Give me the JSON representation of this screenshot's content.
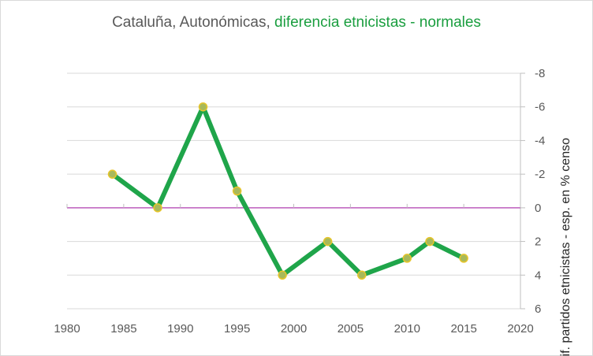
{
  "chart_data": {
    "type": "line",
    "title_main": "Cataluña, Autonómicas, ",
    "title_accent": "diferencia etnicistas - normales",
    "xlabel": "",
    "ylabel": "Dif. partidos etnicistas - esp. en % censo",
    "xlim": [
      1980,
      2020
    ],
    "ylim": [
      6,
      -8
    ],
    "y_reversed": true,
    "x_ticks": [
      1980,
      1985,
      1990,
      1995,
      2000,
      2005,
      2010,
      2015,
      2020
    ],
    "y_ticks": [
      -8,
      -6,
      -4,
      -2,
      0,
      2,
      4,
      6
    ],
    "grid": true,
    "series": [
      {
        "name": "diferencia etnicistas - normales",
        "x": [
          1984,
          1988,
          1992,
          1995,
          1999,
          2003,
          2006,
          2010,
          2012,
          2015
        ],
        "y": [
          -2,
          0,
          -6,
          -1,
          4,
          2,
          4,
          3,
          2,
          3
        ]
      }
    ],
    "reference_line": {
      "y": 0
    }
  },
  "colors": {
    "series": "#1fa54a",
    "marker_fill": "#a8b95a",
    "marker_edge": "#e7c52b",
    "reference": "#b23fb2",
    "grid": "#d9d9d9",
    "accent_title": "#1a9e3f"
  }
}
